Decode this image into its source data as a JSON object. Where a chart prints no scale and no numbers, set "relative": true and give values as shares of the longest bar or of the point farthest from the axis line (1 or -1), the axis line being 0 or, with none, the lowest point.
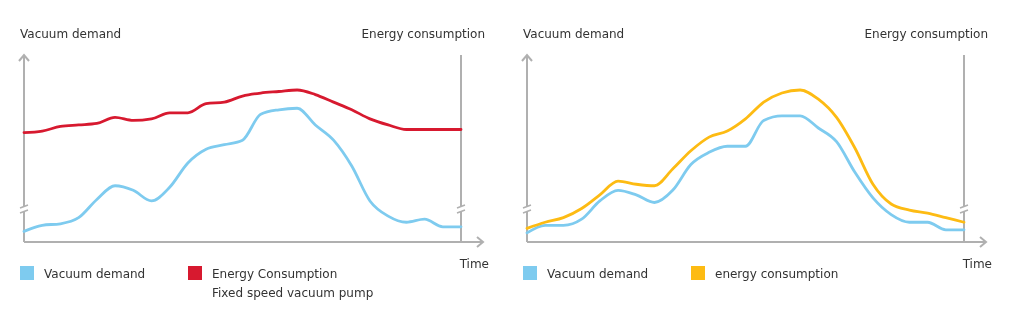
{
  "chart_data": [
    {
      "type": "line",
      "relative": true,
      "ylabel": "Vacuum demand",
      "y2label": "Energy consumption",
      "xlabel": "Time",
      "legend": "bottom",
      "categories": [
        null,
        null,
        null,
        null,
        null,
        null,
        null,
        null,
        null,
        null,
        null,
        null,
        null,
        null,
        null,
        null,
        null,
        null,
        null,
        null,
        null,
        null,
        null,
        null,
        null
      ],
      "series": [
        {
          "name": "Vacuum demand",
          "color": "#7ecbef",
          "values": [
            0.07,
            0.11,
            0.12,
            0.16,
            0.28,
            0.37,
            0.34,
            0.27,
            0.36,
            0.52,
            0.61,
            0.64,
            0.67,
            0.84,
            0.87,
            0.88,
            0.77,
            0.67,
            0.5,
            0.27,
            0.17,
            0.13,
            0.15,
            0.1,
            0.1
          ]
        },
        {
          "name": "Energy Consumption\nFixed speed vacuum pump",
          "color": "#d7192f",
          "values": [
            0.72,
            0.73,
            0.76,
            0.77,
            0.78,
            0.82,
            0.8,
            0.81,
            0.85,
            0.85,
            0.91,
            0.92,
            0.96,
            0.98,
            0.99,
            1,
            0.97,
            0.92,
            0.87,
            0.81,
            0.77,
            0.74,
            0.74,
            0.74,
            0.74
          ]
        }
      ]
    },
    {
      "type": "line",
      "relative": true,
      "ylabel": "Vacuum demand",
      "y2label": "Energy consumption",
      "xlabel": "Time",
      "legend": "bottom",
      "categories": [
        null,
        null,
        null,
        null,
        null,
        null,
        null,
        null,
        null,
        null,
        null,
        null,
        null,
        null,
        null,
        null,
        null,
        null,
        null,
        null,
        null,
        null,
        null,
        null,
        null
      ],
      "series": [
        {
          "name": "Vacuum demand",
          "color": "#7ecbef",
          "values": [
            0.06,
            0.11,
            0.11,
            0.15,
            0.27,
            0.34,
            0.31,
            0.26,
            0.34,
            0.51,
            0.59,
            0.63,
            0.63,
            0.8,
            0.83,
            0.83,
            0.75,
            0.66,
            0.46,
            0.29,
            0.18,
            0.13,
            0.13,
            0.08,
            0.08
          ]
        },
        {
          "name": "energy consumption",
          "color": "#fdbb13",
          "values": [
            0.09,
            0.13,
            0.16,
            0.22,
            0.31,
            0.4,
            0.38,
            0.37,
            0.48,
            0.6,
            0.69,
            0.73,
            0.81,
            0.92,
            0.98,
            1,
            0.94,
            0.82,
            0.62,
            0.38,
            0.25,
            0.21,
            0.19,
            0.16,
            0.13
          ]
        }
      ]
    }
  ]
}
